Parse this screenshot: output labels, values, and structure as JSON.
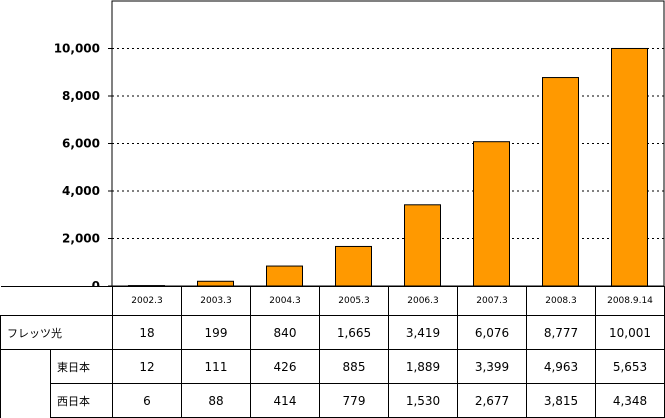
{
  "chart_data": {
    "type": "bar",
    "categories": [
      "2002.3",
      "2003.3",
      "2004.3",
      "2005.3",
      "2006.3",
      "2007.3",
      "2008.3",
      "2008.9.14"
    ],
    "series": [
      {
        "name": "フレッツ光",
        "values": [
          18,
          199,
          840,
          1665,
          3419,
          6076,
          8777,
          10001
        ]
      }
    ],
    "ylim": [
      0,
      12000
    ],
    "yticks": [
      0,
      2000,
      4000,
      6000,
      8000,
      10000
    ],
    "ytick_labels": [
      "0",
      "2,000",
      "4,000",
      "6,000",
      "8,000",
      "10,000"
    ],
    "grid": true,
    "bar_color": "#FF9900",
    "table": {
      "headers": [
        "2002.3",
        "2003.3",
        "2004.3",
        "2005.3",
        "2006.3",
        "2007.3",
        "2008.3",
        "2008.9.14"
      ],
      "rows": [
        {
          "label": "フレッツ光",
          "values": [
            "18",
            "199",
            "840",
            "1,665",
            "3,419",
            "6,076",
            "8,777",
            "10,001"
          ]
        },
        {
          "label": "東日本",
          "values": [
            "12",
            "111",
            "426",
            "885",
            "1,889",
            "3,399",
            "4,963",
            "5,653"
          ]
        },
        {
          "label": "西日本",
          "values": [
            "6",
            "88",
            "414",
            "779",
            "1,530",
            "2,677",
            "3,815",
            "4,348"
          ]
        }
      ]
    }
  }
}
